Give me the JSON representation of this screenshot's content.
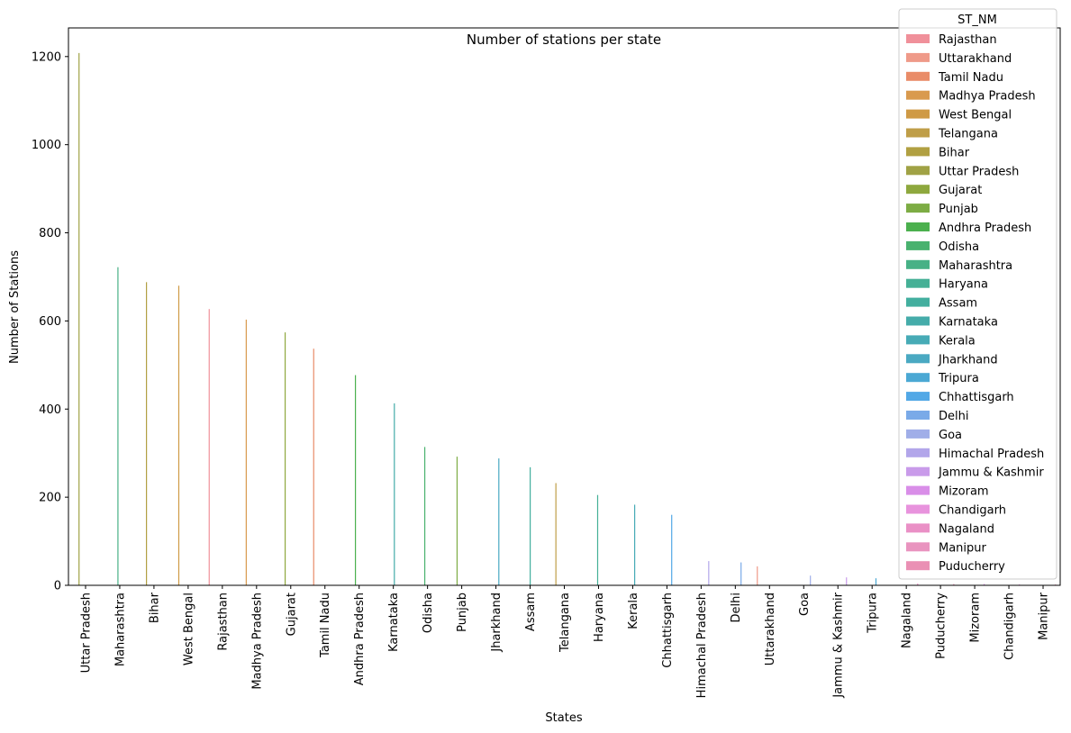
{
  "chart_data": {
    "type": "bar",
    "title": "Number of stations per state",
    "xlabel": "States",
    "ylabel": "Number of Stations",
    "ylim": [
      0,
      1265
    ],
    "yticks": [
      0,
      200,
      400,
      600,
      800,
      1000,
      1200
    ],
    "grid": false,
    "legend_position": "top-right",
    "legend_title": "ST_NM",
    "categories": [
      "Uttar Pradesh",
      "Maharashtra",
      "Bihar",
      "West Bengal",
      "Rajasthan",
      "Madhya Pradesh",
      "Gujarat",
      "Tamil Nadu",
      "Andhra Pradesh",
      "Karnataka",
      "Odisha",
      "Punjab",
      "Jharkhand",
      "Assam",
      "Telangana",
      "Haryana",
      "Kerala",
      "Chhattisgarh",
      "Himachal Pradesh",
      "Delhi",
      "Uttarakhand",
      "Goa",
      "Jammu & Kashmir",
      "Tripura",
      "Nagaland",
      "Puducherry",
      "Mizoram",
      "Chandigarh",
      "Manipur"
    ],
    "values": [
      1208,
      722,
      688,
      680,
      627,
      603,
      574,
      537,
      477,
      413,
      314,
      292,
      288,
      268,
      232,
      205,
      183,
      160,
      55,
      52,
      43,
      22,
      18,
      16,
      4,
      3,
      3,
      2,
      2
    ],
    "hue_order": [
      "Rajasthan",
      "Uttarakhand",
      "Tamil Nadu",
      "Madhya Pradesh",
      "West Bengal",
      "Telangana",
      "Bihar",
      "Uttar Pradesh",
      "Gujarat",
      "Punjab",
      "Andhra Pradesh",
      "Odisha",
      "Maharashtra",
      "Haryana",
      "Assam",
      "Karnataka",
      "Kerala",
      "Jharkhand",
      "Tripura",
      "Chhattisgarh",
      "Delhi",
      "Goa",
      "Himachal Pradesh",
      "Jammu & Kashmir",
      "Mizoram",
      "Chandigarh",
      "Nagaland",
      "Manipur",
      "Puducherry"
    ],
    "hue_colors": [
      "#f0909a",
      "#ef9a89",
      "#e98c68",
      "#d99a4e",
      "#cf9a45",
      "#bf9e48",
      "#b1a042",
      "#a0a245",
      "#8ea83e",
      "#7dac44",
      "#4bb04e",
      "#49b26f",
      "#47b186",
      "#45b096",
      "#43af9f",
      "#45acaa",
      "#47abb6",
      "#4aa9c2",
      "#4ba8d4",
      "#52a8e6",
      "#7aaae8",
      "#a0aee8",
      "#b2a6ea",
      "#c99bea",
      "#d98ee8",
      "#e893dd",
      "#ea90c6",
      "#e994bf",
      "#ea90b4"
    ]
  }
}
